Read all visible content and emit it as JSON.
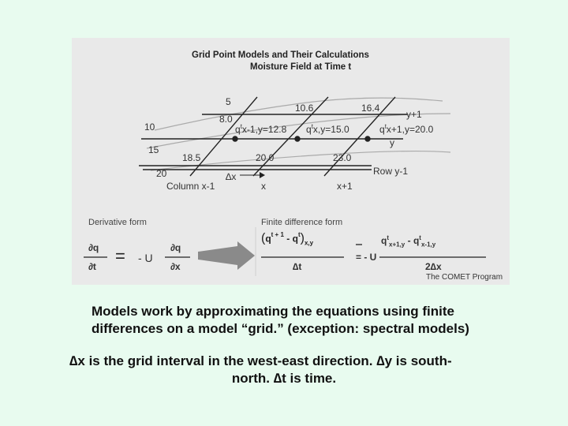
{
  "figure": {
    "title": "Grid Point Models and Their Calculations",
    "subtitle": "Moisture Field at Time t",
    "contour_values": [
      "5",
      "10.6",
      "16.4",
      "10",
      "15",
      "18.5",
      "20.0",
      "23.0",
      "20",
      "8.0"
    ],
    "q_labels": {
      "left": "q",
      "left_sup": "t",
      "left_sub": "x-1,y=12.8",
      "mid": "q",
      "mid_sup": "t",
      "mid_sub": "x,y=15.0",
      "right": "q",
      "right_sup": "t",
      "right_sub": "x+1,y=20.0"
    },
    "row_labels": {
      "top": "y+1",
      "mid": "y",
      "bottom": "Row y-1"
    },
    "column_labels": {
      "left": "Column x-1",
      "mid": "x",
      "right": "x+1"
    },
    "delta_x": "∆x",
    "derivative_label": "Derivative form",
    "finite_label": "Finite difference form",
    "deriv": {
      "dq": "∂q",
      "dt": "∂t",
      "eq": "=",
      "minus_u": "- U",
      "dq2": "∂q",
      "dx": "∂x"
    },
    "finite": {
      "q": "q",
      "t_plus_1": "t + 1",
      "minus": "-",
      "q2": "q",
      "t_sup": "t",
      "xy": "x,y",
      "delta_t": "∆t",
      "eq_minus_u": "= - U",
      "q3": "q",
      "t3": "t",
      "x_plus_1_y": "x+1,y",
      "minus2": "-",
      "q4": "q",
      "t4": "t",
      "x_minus_1_y": "x-1,y",
      "two_delta_x": "2∆x"
    },
    "credit": "The COMET Program"
  },
  "caption": {
    "line1": "Models work by approximating the equations using finite",
    "line2": "differences on a model “grid.”  (exception: spectral models)",
    "line3": "∆x is the grid interval in the west-east direction. ∆y is south-",
    "line4": "north. ∆t is time."
  },
  "colors": {
    "background": "#e8fbef",
    "panel": "#e9e9e9",
    "line": "#222222",
    "arrow": "#8a8a8a"
  }
}
